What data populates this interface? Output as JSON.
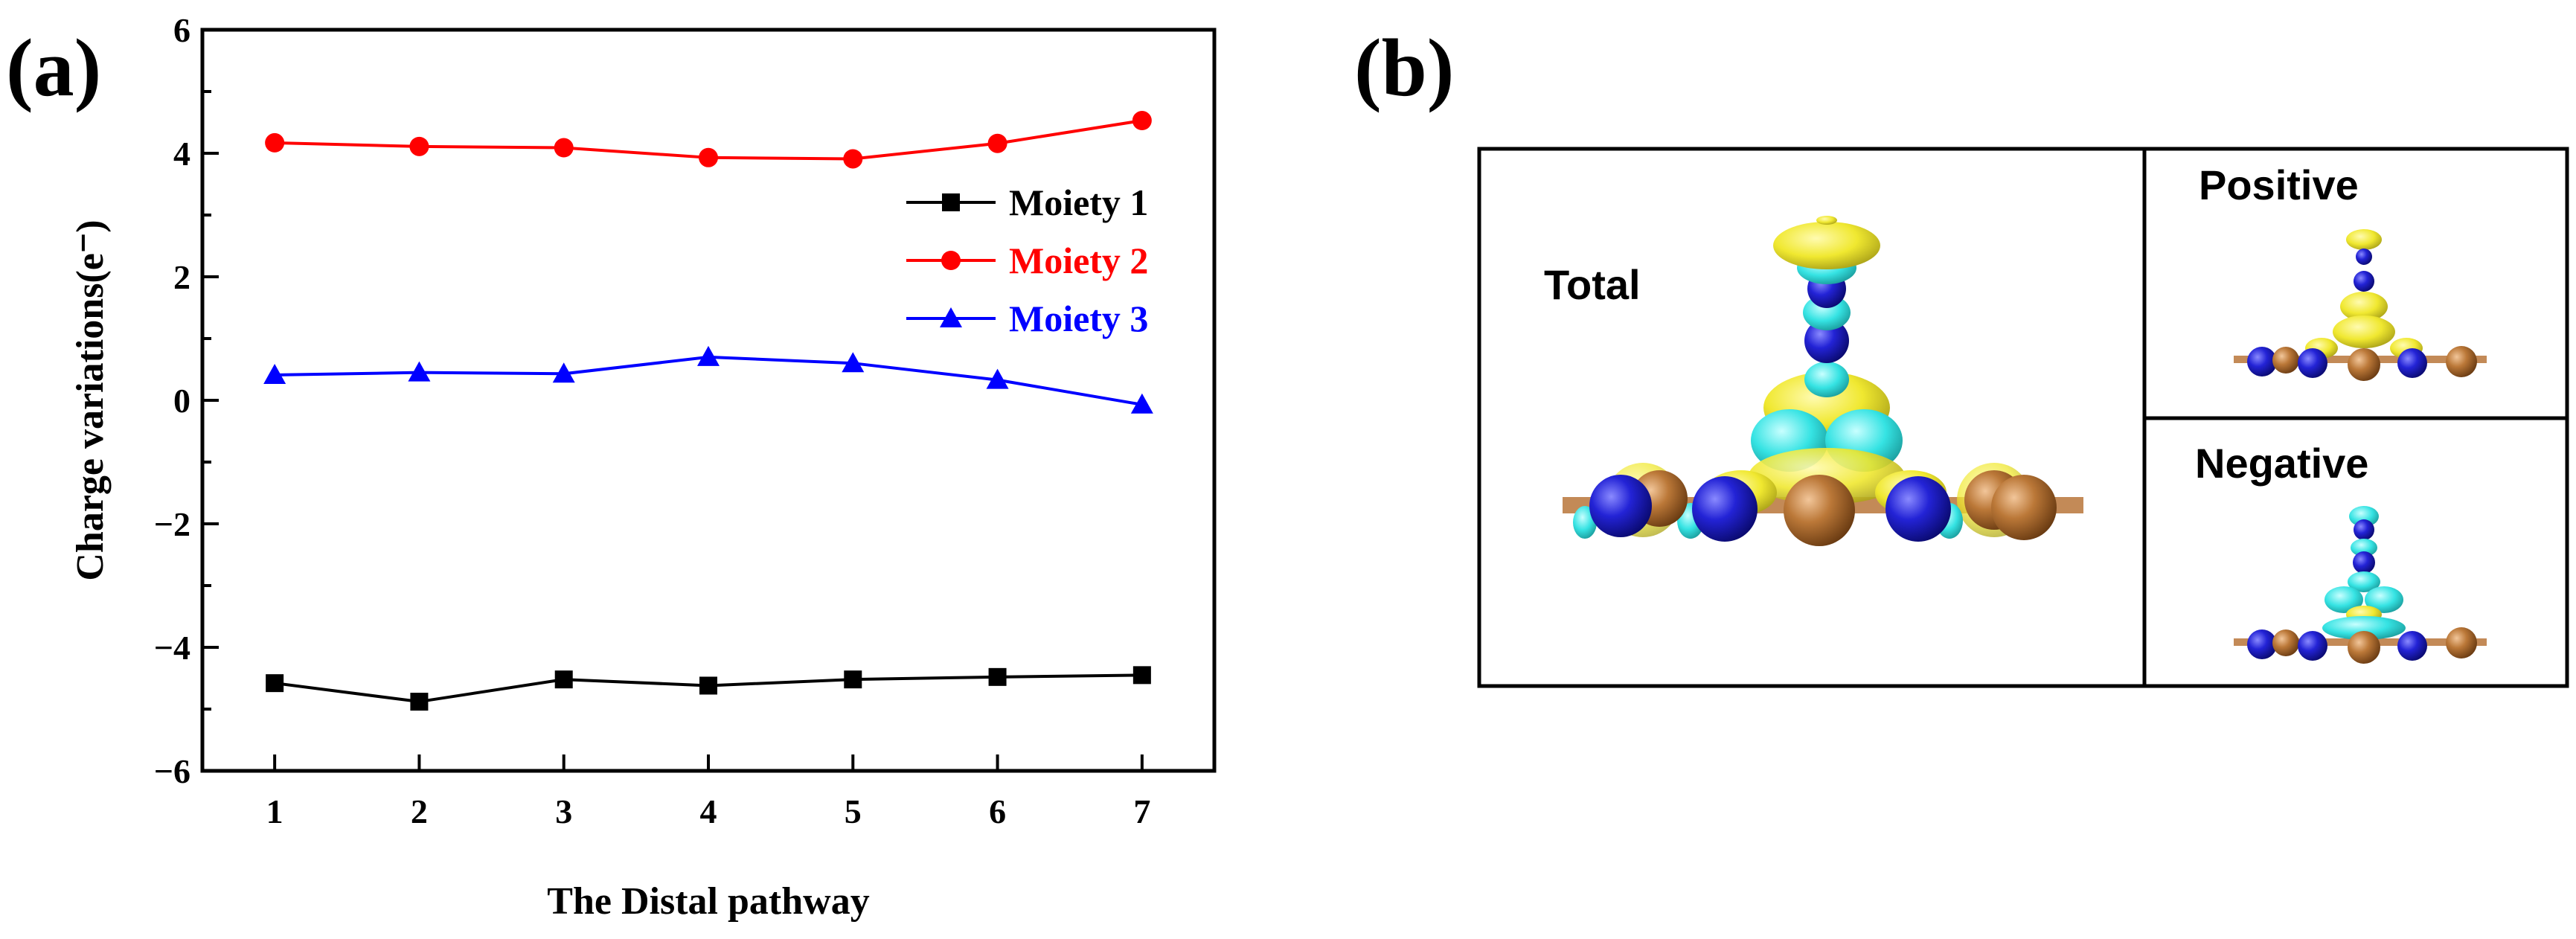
{
  "panels": {
    "a": {
      "label": "(a)"
    },
    "b": {
      "label": "(b)"
    }
  },
  "chart_data": {
    "type": "line",
    "title": "",
    "xlabel": "The Distal pathway",
    "ylabel": "Charge variations(e⁻)",
    "x": [
      1,
      2,
      3,
      4,
      5,
      6,
      7
    ],
    "xlim": [
      0.5,
      7.5
    ],
    "ylim": [
      -6,
      6
    ],
    "xticks": [
      1,
      2,
      3,
      4,
      5,
      6,
      7
    ],
    "yticks": [
      -6,
      -4,
      -2,
      0,
      2,
      4,
      6
    ],
    "ytick_labels": [
      "−6",
      "−4",
      "−2",
      "0",
      "2",
      "4",
      "6"
    ],
    "grid": false,
    "legend_position": "upper-right",
    "series": [
      {
        "name": "Moiety 1",
        "color": "#000000",
        "marker": "square",
        "values": [
          -4.58,
          -4.88,
          -4.52,
          -4.62,
          -4.52,
          -4.48,
          -4.45
        ]
      },
      {
        "name": "Moiety 2",
        "color": "#ff0000",
        "marker": "circle",
        "values": [
          4.17,
          4.11,
          4.09,
          3.93,
          3.91,
          4.16,
          4.53
        ]
      },
      {
        "name": "Moiety 3",
        "color": "#0000ff",
        "marker": "triangle",
        "values": [
          0.41,
          0.45,
          0.43,
          0.7,
          0.6,
          0.33,
          -0.07
        ]
      }
    ]
  },
  "charge_density": {
    "total_label": "Total",
    "positive_label": "Positive",
    "negative_label": "Negative",
    "colors": {
      "nitrogen": "#1f1fd0",
      "metal": "#b8763a",
      "yellow_isosurface": "#f2ec2e",
      "cyan_isosurface": "#38e6e6"
    }
  }
}
